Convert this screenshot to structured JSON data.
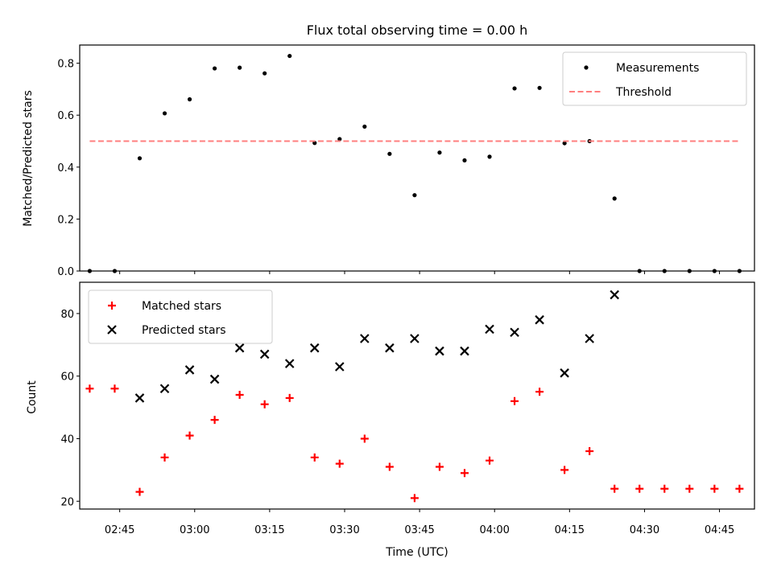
{
  "chart_data": [
    {
      "type": "scatter",
      "title": "Flux total observing time = 0.00 h",
      "xlabel": "",
      "ylabel": "Matched/Predicted stars",
      "xlim": [
        "02:37",
        "04:52"
      ],
      "ylim": [
        0,
        0.87
      ],
      "yticks": [
        "0.0",
        "0.2",
        "0.4",
        "0.6",
        "0.8"
      ],
      "legend": {
        "position": "top-right"
      },
      "series": [
        {
          "name": "Measurements",
          "marker": "dot",
          "color": "#000000",
          "x": [
            "02:39",
            "02:44",
            "02:49",
            "02:54",
            "02:59",
            "03:04",
            "03:09",
            "03:14",
            "03:19",
            "03:24",
            "03:29",
            "03:34",
            "03:39",
            "03:44",
            "03:49",
            "03:54",
            "03:59",
            "04:04",
            "04:09",
            "04:14",
            "04:19",
            "04:24",
            "04:29",
            "04:34",
            "04:39",
            "04:44",
            "04:49"
          ],
          "y": [
            0.0,
            0.0,
            0.434,
            0.607,
            0.661,
            0.78,
            0.783,
            0.761,
            0.828,
            0.493,
            0.508,
            0.556,
            0.451,
            0.292,
            0.456,
            0.426,
            0.44,
            0.703,
            0.705,
            0.492,
            0.5,
            0.279,
            0.0,
            0.0,
            0.0,
            0.0,
            0.0
          ]
        },
        {
          "name": "Threshold",
          "line": "dashed",
          "color": "#ff7f7f",
          "x": [
            "02:39",
            "04:49"
          ],
          "y": [
            0.5,
            0.5
          ]
        }
      ]
    },
    {
      "type": "scatter",
      "title": "",
      "xlabel": "Time (UTC)",
      "ylabel": "Count",
      "xlim": [
        "02:37",
        "04:52"
      ],
      "ylim": [
        17.5,
        90
      ],
      "yticks": [
        "20",
        "40",
        "60",
        "80"
      ],
      "xticks": [
        "02:45",
        "03:00",
        "03:15",
        "03:30",
        "03:45",
        "04:00",
        "04:15",
        "04:30",
        "04:45"
      ],
      "legend": {
        "position": "top-left"
      },
      "series": [
        {
          "name": "Matched stars",
          "marker": "plus",
          "color": "#ff0000",
          "x": [
            "02:39",
            "02:44",
            "02:49",
            "02:54",
            "02:59",
            "03:04",
            "03:09",
            "03:14",
            "03:19",
            "03:24",
            "03:29",
            "03:34",
            "03:39",
            "03:44",
            "03:49",
            "03:54",
            "03:59",
            "04:04",
            "04:09",
            "04:14",
            "04:19",
            "04:24",
            "04:29",
            "04:34",
            "04:39",
            "04:44",
            "04:49"
          ],
          "y": [
            56,
            56,
            23,
            34,
            41,
            46,
            54,
            51,
            53,
            34,
            32,
            40,
            31,
            21,
            31,
            29,
            33,
            52,
            55,
            30,
            36,
            24,
            24,
            24,
            24,
            24,
            24
          ]
        },
        {
          "name": "Predicted stars",
          "marker": "x",
          "color": "#000000",
          "x": [
            "02:49",
            "02:54",
            "02:59",
            "03:04",
            "03:09",
            "03:14",
            "03:19",
            "03:24",
            "03:29",
            "03:34",
            "03:39",
            "03:44",
            "03:49",
            "03:54",
            "03:59",
            "04:04",
            "04:09",
            "04:14",
            "04:19",
            "04:24"
          ],
          "y": [
            53,
            56,
            62,
            59,
            69,
            67,
            64,
            69,
            63,
            72,
            69,
            72,
            68,
            68,
            75,
            74,
            78,
            61,
            72,
            86
          ]
        }
      ]
    }
  ]
}
